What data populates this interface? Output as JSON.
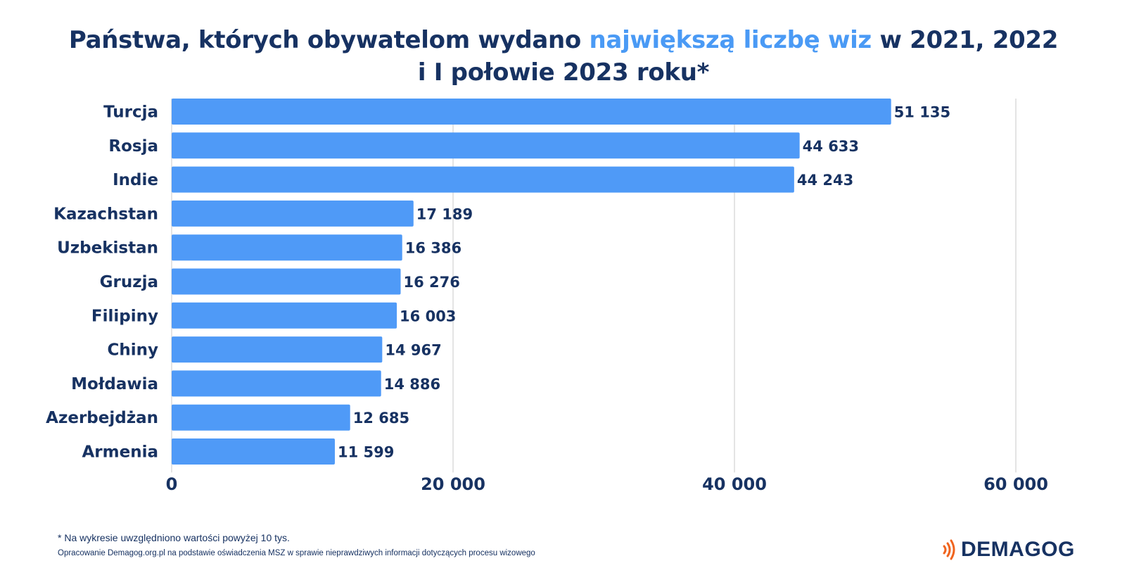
{
  "title": {
    "part1": "Państwa, których obywatelom wydano ",
    "highlight": "największą liczbę wiz",
    "part2": " w 2021, 2022",
    "line2": "i I połowie 2023 roku*"
  },
  "chart_data": {
    "type": "bar",
    "orientation": "horizontal",
    "categories": [
      "Turcja",
      "Rosja",
      "Indie",
      "Kazachstan",
      "Uzbekistan",
      "Gruzja",
      "Filipiny",
      "Chiny",
      "Mołdawia",
      "Azerbejdżan",
      "Armenia"
    ],
    "values": [
      51135,
      44633,
      44243,
      17189,
      16386,
      16276,
      16003,
      14967,
      14886,
      12685,
      11599
    ],
    "value_labels": [
      "51 135",
      "44 633",
      "44 243",
      "17 189",
      "16 386",
      "16 276",
      "16 003",
      "14 967",
      "14 886",
      "12 685",
      "11 599"
    ],
    "xlim": [
      0,
      60000
    ],
    "xticks": [
      0,
      20000,
      40000,
      60000
    ],
    "xtick_labels": [
      "0",
      "20 000",
      "40 000",
      "60 000"
    ],
    "grid": "vertical",
    "bar_color": "#4f9af7",
    "text_color": "#173262",
    "grid_color": "#dcdcdc"
  },
  "footnote": "* Na wykresie uwzględniono wartości powyżej 10 tys.",
  "source": "Opracowanie Demagog.org.pl na podstawie oświadczenia MSZ w sprawie nieprawdziwych informacji dotyczących procesu wizowego",
  "logo": {
    "text": "DEMAGOG",
    "mark_color": "#f0641e",
    "icon": "sound-waves-icon"
  }
}
